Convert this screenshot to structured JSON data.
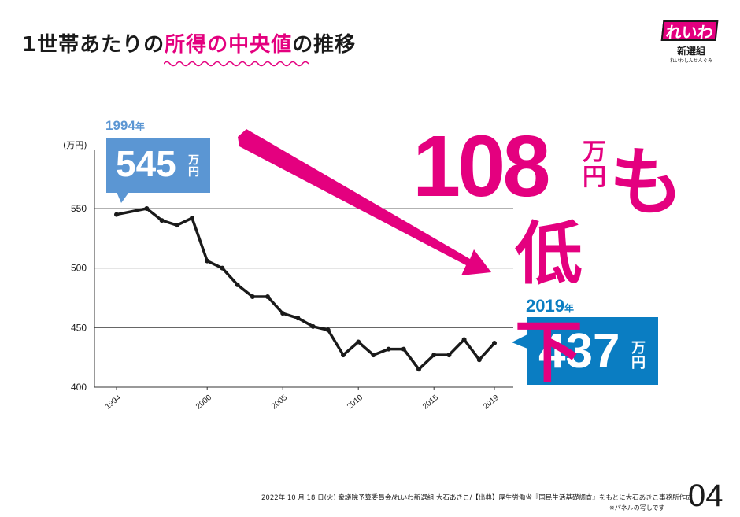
{
  "title": {
    "part1": "1世帯あたりの",
    "highlight": "所得の中央値",
    "part2": "の推移"
  },
  "logo": {
    "main": "れいわ",
    "sub": "新選組",
    "tiny": "れいわしんせんぐみ"
  },
  "callout_start": {
    "year": "1994",
    "year_suffix": "年",
    "value": "545",
    "unit": "万円"
  },
  "callout_end": {
    "year": "2019",
    "year_suffix": "年",
    "value": "437",
    "unit": "万円"
  },
  "headline": {
    "amount": "108",
    "unit": "万円",
    "mo": "も",
    "drop": "低下"
  },
  "footer": {
    "source": "2022年 10 月 18 日(火) 衆議院予算委員会/れいわ新選組 大石あきこ/【出典】厚生労働省『国民生活基礎調査』をもとに大石あきこ事務所作成",
    "note": "※パネルの写しです"
  },
  "page_number": "04",
  "colors": {
    "accent": "#e4007f",
    "blue_light": "#5b96d3",
    "blue_dark": "#0a7dc2"
  },
  "chart_data": {
    "type": "line",
    "ylabel": "(万円)",
    "ylim": [
      400,
      565
    ],
    "yticks": [
      400,
      450,
      500,
      550
    ],
    "xlim": [
      1993,
      2019.5
    ],
    "xticks": [
      1994,
      2000,
      2005,
      2010,
      2015,
      2019
    ],
    "grid": "horizontal",
    "series": [
      {
        "x": [
          1994,
          1996,
          1997,
          1998,
          1999,
          2000,
          2001,
          2002,
          2003,
          2004,
          2005,
          2006,
          2007,
          2008,
          2009,
          2010,
          2011,
          2012,
          2013,
          2014,
          2015,
          2016,
          2017,
          2018,
          2019
        ],
        "values": [
          545,
          550,
          540,
          536,
          542,
          506,
          500,
          486,
          476,
          476,
          462,
          458,
          451,
          448,
          427,
          438,
          427,
          432,
          432,
          415,
          427,
          427,
          440,
          423,
          437
        ]
      }
    ]
  }
}
